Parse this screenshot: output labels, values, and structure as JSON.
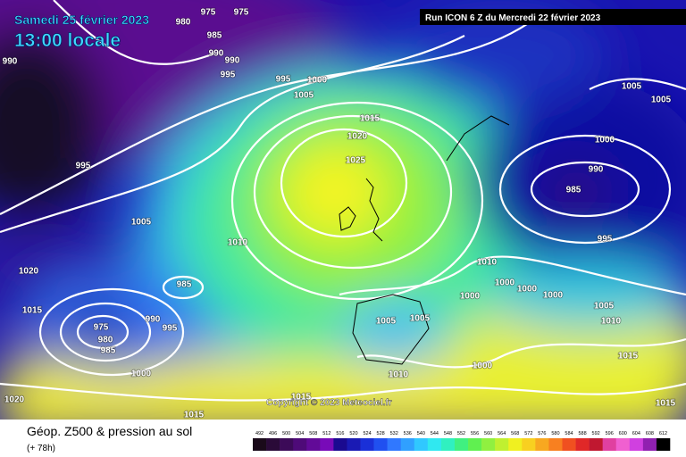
{
  "header": {
    "date": "Samedi 25 février 2023",
    "time": "13:00 locale",
    "run": "Run ICON 6 Z du Mercredi 22 février 2023"
  },
  "isobar_labels": [
    975,
    975,
    980,
    985,
    990,
    990,
    990,
    995,
    995,
    1000,
    1005,
    1015,
    1020,
    1025,
    995,
    1005,
    1010,
    1020,
    1015,
    985,
    990,
    995,
    975,
    980,
    985,
    1000,
    1010,
    1000,
    1005,
    1005,
    1010,
    1000,
    1000,
    1000,
    1000,
    1005,
    1010,
    1015,
    1000,
    990,
    985,
    995,
    1005,
    1005,
    1015,
    1020,
    1015,
    1015
  ],
  "copyright": "Copyright © 2023 Meteociel.fr",
  "footer": {
    "title": "Géop. Z500 & pression au sol",
    "lead": "(+ 78h)"
  },
  "legend": {
    "values": [
      492,
      496,
      500,
      504,
      508,
      512,
      516,
      520,
      524,
      528,
      532,
      536,
      540,
      544,
      548,
      552,
      556,
      560,
      564,
      568,
      572,
      576,
      580,
      584,
      588,
      592,
      596,
      600,
      604,
      608,
      612
    ]
  }
}
